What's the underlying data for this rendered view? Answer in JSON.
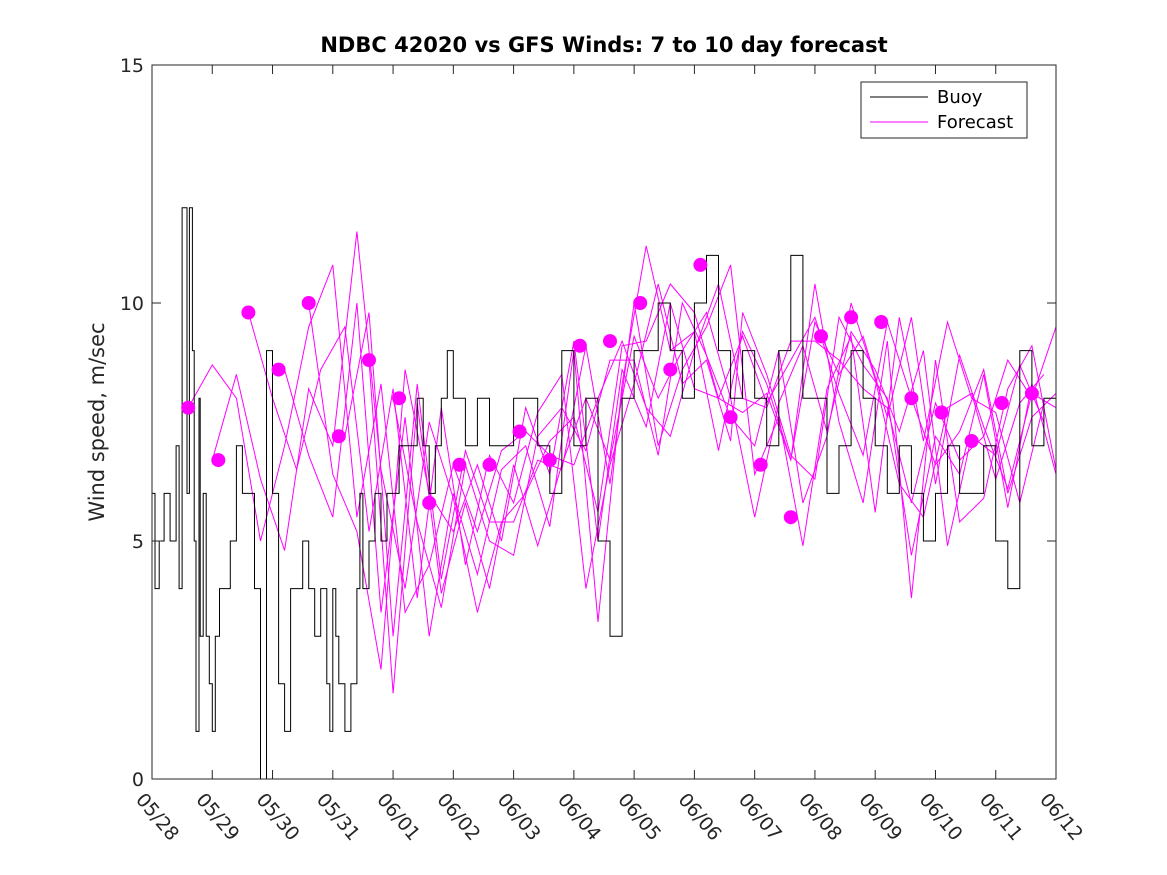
{
  "chart_data": {
    "type": "line",
    "title": "NDBC 42020 vs GFS Winds: 7 to 10 day forecast",
    "xlabel": "",
    "ylabel": "Wind speed, m/sec",
    "ylim": [
      0,
      15
    ],
    "xlim": [
      0,
      15
    ],
    "yticks": [
      {
        "value": 0,
        "label": "0"
      },
      {
        "value": 5,
        "label": "5"
      },
      {
        "value": 10,
        "label": "10"
      },
      {
        "value": 15,
        "label": "15"
      }
    ],
    "xticks": [
      {
        "value": 0,
        "label": "05/28"
      },
      {
        "value": 1,
        "label": "05/29"
      },
      {
        "value": 2,
        "label": "05/30"
      },
      {
        "value": 3,
        "label": "05/31"
      },
      {
        "value": 4,
        "label": "06/01"
      },
      {
        "value": 5,
        "label": "06/02"
      },
      {
        "value": 6,
        "label": "06/03"
      },
      {
        "value": 7,
        "label": "06/04"
      },
      {
        "value": 8,
        "label": "06/05"
      },
      {
        "value": 9,
        "label": "06/06"
      },
      {
        "value": 10,
        "label": "06/07"
      },
      {
        "value": 11,
        "label": "06/08"
      },
      {
        "value": 12,
        "label": "06/09"
      },
      {
        "value": 13,
        "label": "06/10"
      },
      {
        "value": 14,
        "label": "06/11"
      },
      {
        "value": 15,
        "label": "06/12"
      }
    ],
    "grid": false,
    "legend": {
      "position": "top-right",
      "entries": [
        {
          "name": "Buoy",
          "color": "#000000"
        },
        {
          "name": "Forecast",
          "color": "#ff00ff"
        }
      ]
    },
    "colors": {
      "buoy": "#000000",
      "forecast": "#ff00ff"
    },
    "buoy": {
      "name": "Buoy",
      "x": [
        0,
        0.05,
        0.12,
        0.2,
        0.3,
        0.4,
        0.45,
        0.5,
        0.58,
        0.62,
        0.67,
        0.7,
        0.73,
        0.78,
        0.8,
        0.85,
        0.9,
        0.95,
        1.0,
        1.05,
        1.12,
        1.2,
        1.3,
        1.4,
        1.5,
        1.6,
        1.7,
        1.8,
        1.9,
        2.0,
        2.1,
        2.2,
        2.3,
        2.4,
        2.5,
        2.6,
        2.7,
        2.8,
        2.9,
        2.95,
        3.0,
        3.05,
        3.1,
        3.2,
        3.3,
        3.4,
        3.45,
        3.5,
        3.6,
        3.7,
        3.8,
        3.9,
        4.0,
        4.1,
        4.2,
        4.3,
        4.4,
        4.5,
        4.6,
        4.7,
        4.8,
        4.9,
        5.0,
        5.2,
        5.4,
        5.6,
        5.8,
        6.0,
        6.2,
        6.4,
        6.6,
        6.8,
        7.0,
        7.2,
        7.4,
        7.6,
        7.8,
        8.0,
        8.2,
        8.4,
        8.6,
        8.8,
        9.0,
        9.2,
        9.4,
        9.6,
        9.8,
        10.0,
        10.2,
        10.4,
        10.6,
        10.8,
        11.0,
        11.2,
        11.4,
        11.6,
        11.8,
        12.0,
        12.2,
        12.4,
        12.6,
        12.8,
        13.0,
        13.2,
        13.4,
        13.6,
        13.8,
        14.0,
        14.2,
        14.4,
        14.6,
        14.8,
        15.0
      ],
      "y": [
        6,
        4,
        5,
        6,
        5,
        7,
        4,
        12,
        6,
        12,
        9,
        5,
        1,
        8,
        3,
        6,
        3,
        2,
        1,
        3,
        4,
        4,
        5,
        7,
        6,
        6,
        4,
        0,
        9,
        6,
        2,
        1,
        4,
        4,
        5,
        4,
        3,
        4,
        2,
        1,
        4,
        3,
        2,
        1,
        2,
        4,
        6,
        4,
        5,
        6,
        5,
        6,
        6,
        7,
        7,
        7,
        8,
        7,
        6,
        7,
        8,
        9,
        8,
        7,
        8,
        7,
        7,
        8,
        8,
        7,
        6,
        9,
        7,
        8,
        5,
        3,
        8,
        9,
        9,
        10,
        9,
        8,
        10,
        11,
        9,
        8,
        9,
        8,
        7,
        9,
        11,
        8,
        8,
        6,
        7,
        9,
        8,
        7,
        6,
        7,
        6,
        5,
        6,
        7,
        6,
        6,
        7,
        5,
        4,
        9,
        7,
        8,
        8
      ]
    },
    "forecast_lines": [
      {
        "x": [
          0.6,
          1.0,
          1.4,
          1.8,
          2.2,
          2.6,
          3.0,
          3.4,
          3.8,
          4.2,
          4.6,
          5.0,
          5.4,
          5.8,
          6.2,
          6.6,
          7.0,
          7.4,
          7.8,
          8.2,
          8.6,
          9.0,
          9.4,
          9.8,
          10.2,
          10.6,
          11.0,
          11.4,
          11.8,
          12.2,
          12.6,
          13.0,
          13.4,
          13.8,
          14.2,
          14.6,
          15.0
        ],
        "y": [
          7.8,
          8.7,
          8.0,
          5.0,
          7.0,
          9.5,
          10.8,
          5.5,
          8.3,
          3.5,
          4.5,
          6.6,
          5.2,
          6.9,
          7.3,
          6.8,
          6.6,
          8.0,
          9.2,
          7.8,
          7.2,
          9.0,
          10.4,
          8.0,
          7.8,
          9.2,
          9.2,
          8.8,
          8.2,
          7.8,
          5.8,
          7.9,
          6.7,
          7.2,
          8.8,
          8.0,
          9.5
        ]
      },
      {
        "x": [
          1.0,
          1.4,
          1.8,
          2.2,
          2.6,
          3.0,
          3.4,
          3.8,
          4.2,
          4.6,
          5.0,
          5.4,
          5.8,
          6.2,
          6.6,
          7.0,
          7.4,
          7.8,
          8.2,
          8.6,
          9.0,
          9.4,
          9.8,
          10.2,
          10.6,
          11.0,
          11.4,
          11.8,
          12.2,
          12.6,
          13.0,
          13.4,
          13.8,
          14.2,
          14.6,
          15.0
        ],
        "y": [
          6.7,
          8.5,
          6.3,
          4.8,
          8.2,
          7.0,
          11.5,
          6.5,
          4.0,
          7.5,
          5.9,
          3.5,
          5.4,
          6.0,
          7.1,
          7.6,
          5.6,
          9.1,
          9.2,
          10.4,
          9.8,
          8.0,
          7.7,
          8.1,
          6.7,
          9.6,
          8.5,
          9.3,
          7.6,
          9.7,
          6.2,
          8.9,
          7.4,
          6.1,
          8.1,
          7.8
        ]
      },
      {
        "x": [
          1.6,
          2.0,
          2.4,
          2.8,
          3.2,
          3.6,
          4.0,
          4.4,
          4.8,
          5.2,
          5.6,
          6.0,
          6.4,
          6.8,
          7.2,
          7.6,
          8.0,
          8.4,
          8.8,
          9.2,
          9.6,
          9.8,
          10.2,
          10.6,
          11.0,
          11.4,
          11.8,
          12.2,
          12.6,
          13.0,
          13.4,
          13.8,
          14.2,
          14.6,
          15.0
        ],
        "y": [
          9.8,
          8.0,
          6.5,
          8.6,
          9.5,
          5.2,
          8.2,
          3.8,
          7.8,
          4.5,
          6.8,
          5.8,
          7.7,
          8.5,
          4.0,
          6.6,
          8.3,
          10.4,
          8.3,
          8.8,
          7.1,
          9.8,
          8.5,
          6.8,
          6.3,
          9.7,
          8.7,
          8.0,
          4.7,
          7.2,
          6.4,
          8.5,
          5.7,
          8.3,
          6.4
        ]
      },
      {
        "x": [
          2.2,
          2.6,
          3.0,
          3.4,
          3.8,
          4.2,
          4.6,
          5.0,
          5.4,
          5.8,
          6.2,
          6.6,
          7.0,
          7.4,
          7.8,
          8.2,
          8.6,
          9.0,
          9.4,
          9.8,
          10.2,
          10.6,
          11.0,
          11.4,
          11.8,
          12.2,
          12.6,
          13.0,
          13.4,
          13.8,
          14.2,
          14.6,
          15.0
        ],
        "y": [
          8.6,
          6.8,
          5.5,
          10.0,
          3.5,
          7.6,
          3.0,
          6.0,
          4.3,
          6.5,
          7.0,
          5.3,
          9.0,
          3.3,
          8.3,
          11.2,
          9.0,
          9.4,
          6.9,
          9.4,
          8.3,
          6.7,
          10.4,
          7.5,
          5.8,
          9.2,
          3.8,
          8.8,
          5.4,
          5.9,
          8.2,
          9.1,
          6.5
        ]
      },
      {
        "x": [
          2.6,
          3.0,
          3.4,
          3.8,
          4.2,
          4.6,
          5.0,
          5.4,
          5.8,
          6.2,
          6.6,
          7.0,
          7.4,
          7.8,
          8.2,
          8.6,
          9.0,
          9.4,
          9.8,
          10.2,
          10.6,
          11.0,
          11.4,
          11.8,
          12.2,
          12.6,
          13.0,
          13.4,
          13.8,
          14.2,
          14.6,
          15.0
        ],
        "y": [
          10.0,
          6.4,
          5.2,
          2.3,
          8.6,
          6.0,
          5.2,
          6.6,
          5.0,
          7.8,
          6.4,
          9.2,
          5.0,
          8.6,
          7.4,
          10.0,
          8.2,
          8.0,
          9.3,
          7.9,
          8.8,
          9.7,
          8.1,
          6.8,
          9.6,
          8.0,
          6.6,
          7.3,
          8.6,
          6.0,
          7.6,
          8.1
        ]
      },
      {
        "x": [
          3.2,
          3.6,
          4.0,
          4.4,
          4.8,
          5.2,
          5.6,
          6.0,
          6.4,
          6.8,
          7.2,
          7.6,
          8.0,
          8.4,
          8.8,
          9.2,
          9.6,
          10.0,
          10.4,
          10.8,
          11.2,
          11.6,
          12.0,
          12.4,
          12.8,
          13.2,
          13.6,
          14.0,
          14.4,
          14.8
        ],
        "y": [
          7.2,
          9.8,
          3.0,
          8.3,
          4.2,
          6.9,
          5.4,
          5.4,
          6.7,
          6.5,
          9.1,
          6.2,
          10.0,
          7.0,
          8.6,
          9.5,
          10.8,
          6.4,
          7.6,
          4.9,
          8.2,
          9.3,
          5.6,
          9.7,
          7.1,
          9.6,
          8.0,
          7.7,
          5.8,
          7.9
        ]
      },
      {
        "x": [
          3.6,
          4.0,
          4.4,
          4.8,
          5.2,
          5.6,
          6.0,
          6.4,
          6.8,
          7.2,
          7.6,
          8.0,
          8.4,
          8.8,
          9.2,
          9.6,
          10.0,
          10.4,
          10.8,
          11.2,
          11.6,
          12.0,
          12.4,
          12.8,
          13.2,
          13.6,
          14.0,
          14.4,
          14.8
        ],
        "y": [
          8.8,
          1.8,
          7.9,
          3.9,
          5.8,
          4.0,
          6.6,
          4.9,
          6.6,
          8.0,
          6.7,
          9.3,
          8.0,
          9.0,
          9.8,
          8.0,
          5.5,
          7.9,
          9.1,
          7.3,
          9.4,
          8.6,
          7.3,
          9.0,
          4.9,
          7.2,
          6.8,
          8.7,
          7.5
        ]
      },
      {
        "x": [
          4.0,
          4.4,
          4.8,
          5.2,
          5.6,
          6.0,
          6.4,
          6.8,
          7.2,
          7.6,
          8.0,
          8.4,
          8.8,
          9.2,
          9.6,
          10.0,
          10.4,
          10.8,
          11.2,
          11.6,
          12.0,
          12.4,
          12.8,
          13.2,
          13.6,
          14.0,
          14.4,
          14.8
        ],
        "y": [
          8.0,
          5.4,
          3.6,
          6.6,
          5.0,
          4.7,
          7.2,
          7.8,
          6.9,
          8.8,
          8.8,
          6.8,
          10.0,
          8.9,
          7.6,
          7.0,
          9.0,
          5.8,
          7.2,
          10.0,
          8.4,
          6.2,
          5.5,
          7.8,
          8.1,
          6.3,
          7.9,
          8.5
        ]
      }
    ],
    "forecast_markers": {
      "x": [
        0.6,
        1.1,
        1.6,
        2.1,
        2.6,
        3.1,
        3.6,
        4.1,
        4.6,
        5.1,
        5.6,
        6.1,
        6.6,
        7.1,
        7.6,
        8.1,
        8.6,
        9.1,
        9.6,
        10.1,
        10.6,
        11.1,
        11.6,
        12.1,
        12.6,
        13.1,
        13.6,
        14.1,
        14.6
      ],
      "y": [
        7.8,
        6.7,
        9.8,
        8.6,
        10.0,
        7.2,
        8.8,
        8.0,
        5.8,
        6.6,
        6.6,
        7.3,
        6.7,
        9.1,
        9.2,
        10.0,
        8.6,
        10.8,
        7.6,
        6.6,
        5.5,
        9.3,
        9.7,
        9.6,
        8.0,
        7.7,
        7.1,
        7.9,
        8.1
      ]
    }
  }
}
